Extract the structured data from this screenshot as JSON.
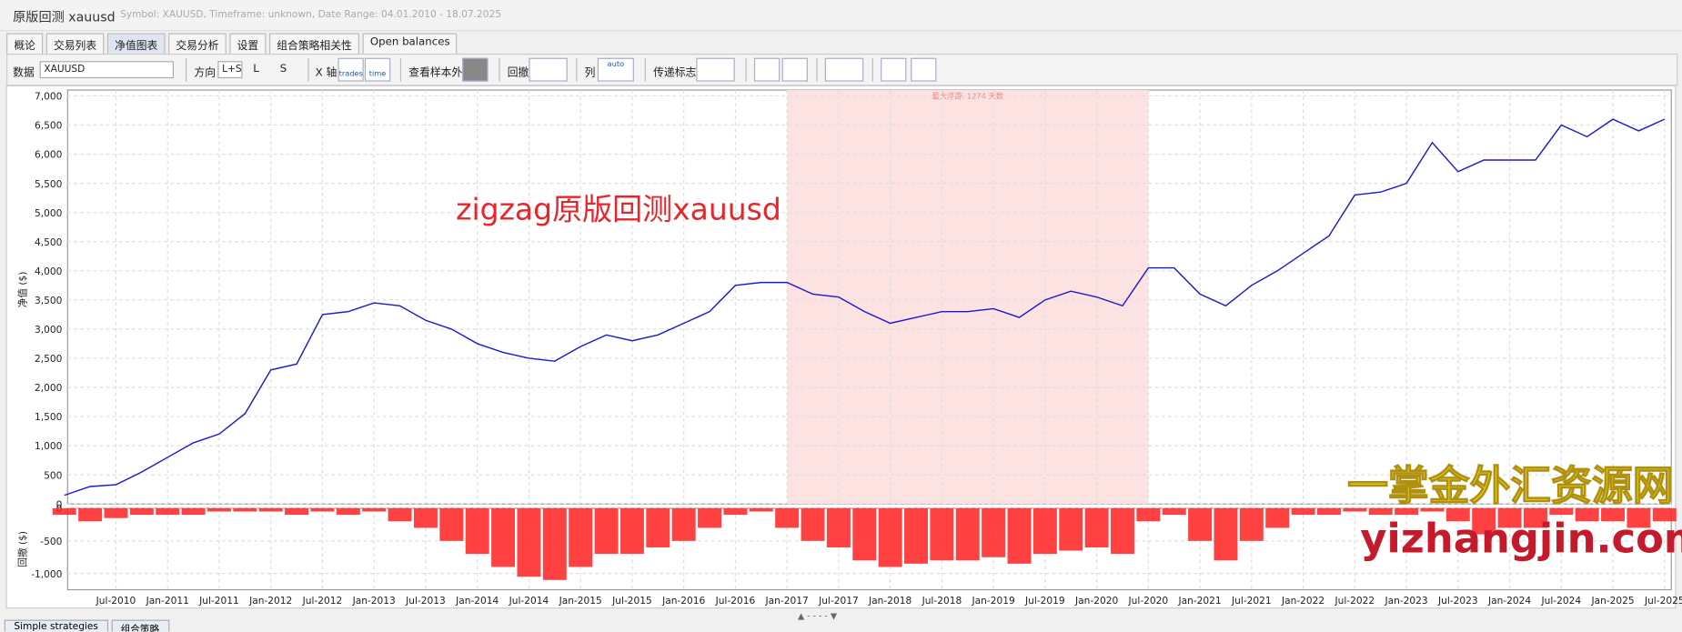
{
  "window": {
    "title": "原版回测 xauusd",
    "subtitle": "Symbol: XAUUSD, Timeframe: unknown, Date Range: 04.01.2010 - 18.07.2025"
  },
  "tabs": [
    "概论",
    "交易列表",
    "净值图表",
    "交易分析",
    "设置",
    "组合策略相关性",
    "Open balances"
  ],
  "toolbar": {
    "data_label": "数据",
    "symbol": "XAUUSD",
    "direction_label": "方向",
    "directions": [
      "L+S",
      "L",
      "S"
    ],
    "x_axis_label": "X 轴",
    "x_axis_options": [
      "trades",
      "time"
    ],
    "oos_label": "查看样本外",
    "drawdown_label": "回撤",
    "columns_label": "列",
    "columns_option": "auto",
    "markers_label": "传递标志"
  },
  "chart_data": [
    {
      "type": "line",
      "y_label": "净值 ($)",
      "color": "#1a1acc",
      "grid": true,
      "x": [
        "Jan-2010",
        "Apr-2010",
        "Jul-2010",
        "Oct-2010",
        "Jan-2011",
        "Apr-2011",
        "Jul-2011",
        "Oct-2011",
        "Jan-2012",
        "Apr-2012",
        "Jul-2012",
        "Oct-2012",
        "Jan-2013",
        "Apr-2013",
        "Jul-2013",
        "Oct-2013",
        "Jan-2014",
        "Apr-2014",
        "Jul-2014",
        "Oct-2014",
        "Jan-2015",
        "Apr-2015",
        "Jul-2015",
        "Oct-2015",
        "Jan-2016",
        "Apr-2016",
        "Jul-2016",
        "Oct-2016",
        "Jan-2017",
        "Apr-2017",
        "Jul-2017",
        "Oct-2017",
        "Jan-2018",
        "Apr-2018",
        "Jul-2018",
        "Oct-2018",
        "Jan-2019",
        "Apr-2019",
        "Jul-2019",
        "Oct-2019",
        "Jan-2020",
        "Apr-2020",
        "Jul-2020",
        "Oct-2020",
        "Jan-2021",
        "Apr-2021",
        "Jul-2021",
        "Oct-2021",
        "Jan-2022",
        "Apr-2022",
        "Jul-2022",
        "Oct-2022",
        "Jan-2023",
        "Apr-2023",
        "Jul-2023",
        "Oct-2023",
        "Jan-2024",
        "Apr-2024",
        "Jul-2024",
        "Oct-2024",
        "Jan-2025",
        "Apr-2025",
        "Jul-2025"
      ],
      "values": [
        150,
        300,
        330,
        550,
        800,
        1050,
        1200,
        1550,
        2300,
        2400,
        3250,
        3300,
        3450,
        3400,
        3150,
        3000,
        2750,
        2600,
        2500,
        2450,
        2700,
        2900,
        2800,
        2900,
        3100,
        3300,
        3750,
        3800,
        3800,
        3600,
        3550,
        3300,
        3100,
        3200,
        3300,
        3300,
        3350,
        3200,
        3500,
        3650,
        3550,
        3400,
        4050,
        4050,
        3600,
        3400,
        3750,
        4000,
        4300,
        4600,
        5300,
        5350,
        5500,
        6200,
        5700,
        5900,
        5900,
        5900,
        6500,
        6300,
        6600,
        6400,
        6600
      ],
      "shade": {
        "label": "最大浮游: 1274 天数",
        "start": "Jan-2017",
        "end": "Jul-2020"
      },
      "ylim": [
        0,
        7100
      ],
      "yticks": [
        0,
        500,
        {
          "value": 1000,
          "label": "1,000"
        },
        {
          "value": 1500,
          "label": "1,500"
        },
        {
          "value": 2000,
          "label": "2,000"
        },
        {
          "value": 2500,
          "label": "2,500"
        },
        {
          "value": 3000,
          "label": "3,000"
        },
        {
          "value": 3500,
          "label": "3,500"
        },
        {
          "value": 4000,
          "label": "4,000"
        },
        {
          "value": 4500,
          "label": "4,500"
        },
        {
          "value": 5000,
          "label": "5,000"
        },
        {
          "value": 5500,
          "label": "5,500"
        },
        {
          "value": 6000,
          "label": "6,000"
        },
        {
          "value": 6500,
          "label": "6,500"
        },
        {
          "value": 7000,
          "label": "7,000"
        }
      ]
    },
    {
      "type": "bar",
      "y_label": "回撤 ($)",
      "color": "#ff2020",
      "grid": true,
      "x": [
        "Jan-2010",
        "Apr-2010",
        "Jul-2010",
        "Oct-2010",
        "Jan-2011",
        "Apr-2011",
        "Jul-2011",
        "Oct-2011",
        "Jan-2012",
        "Apr-2012",
        "Jul-2012",
        "Oct-2012",
        "Jan-2013",
        "Apr-2013",
        "Jul-2013",
        "Oct-2013",
        "Jan-2014",
        "Apr-2014",
        "Jul-2014",
        "Oct-2014",
        "Jan-2015",
        "Apr-2015",
        "Jul-2015",
        "Oct-2015",
        "Jan-2016",
        "Apr-2016",
        "Jul-2016",
        "Oct-2016",
        "Jan-2017",
        "Apr-2017",
        "Jul-2017",
        "Oct-2017",
        "Jan-2018",
        "Apr-2018",
        "Jul-2018",
        "Oct-2018",
        "Jan-2019",
        "Apr-2019",
        "Jul-2019",
        "Oct-2019",
        "Jan-2020",
        "Apr-2020",
        "Jul-2020",
        "Oct-2020",
        "Jan-2021",
        "Apr-2021",
        "Jul-2021",
        "Oct-2021",
        "Jan-2022",
        "Apr-2022",
        "Jul-2022",
        "Oct-2022",
        "Jan-2023",
        "Apr-2023",
        "Jul-2023",
        "Oct-2023",
        "Jan-2024",
        "Apr-2024",
        "Jul-2024",
        "Oct-2024",
        "Jan-2025",
        "Apr-2025",
        "Jul-2025"
      ],
      "values": [
        -100,
        -200,
        -150,
        -100,
        -100,
        -100,
        -50,
        -50,
        -50,
        -100,
        -50,
        -100,
        -50,
        -200,
        -300,
        -500,
        -700,
        -900,
        -1050,
        -1100,
        -900,
        -700,
        -700,
        -600,
        -500,
        -300,
        -100,
        -50,
        -300,
        -500,
        -600,
        -800,
        -900,
        -850,
        -800,
        -800,
        -750,
        -850,
        -700,
        -650,
        -600,
        -700,
        -200,
        -100,
        -500,
        -800,
        -500,
        -300,
        -100,
        -100,
        -50,
        -100,
        -100,
        -50,
        -200,
        -400,
        -300,
        -300,
        -100,
        -200,
        -200,
        -300,
        -200
      ],
      "ylim": [
        -1250,
        0
      ],
      "yticks": [
        0,
        -500,
        {
          "value": -1000,
          "label": "-1,000"
        }
      ],
      "xticks": [
        "Jul-2010",
        "Jan-2011",
        "Jul-2011",
        "Jan-2012",
        "Jul-2012",
        "Jan-2013",
        "Jul-2013",
        "Jan-2014",
        "Jul-2014",
        "Jan-2015",
        "Jul-2015",
        "Jan-2016",
        "Jul-2016",
        "Jan-2017",
        "Jul-2017",
        "Jan-2018",
        "Jul-2018",
        "Jan-2019",
        "Jul-2019",
        "Jan-2020",
        "Jul-2020",
        "Jan-2021",
        "Jul-2021",
        "Jan-2022",
        "Jul-2022",
        "Jan-2023",
        "Jul-2023",
        "Jan-2024",
        "Jul-2024",
        "Jan-2025",
        "Jul-2025"
      ]
    }
  ],
  "annotations": {
    "main": "zigzag原版回测xauusd",
    "watermark_cn": "一掌金外汇资源网",
    "watermark_en": "yizhangjin.com"
  },
  "bottom_tabs": [
    "Simple strategies",
    "组合策略"
  ]
}
